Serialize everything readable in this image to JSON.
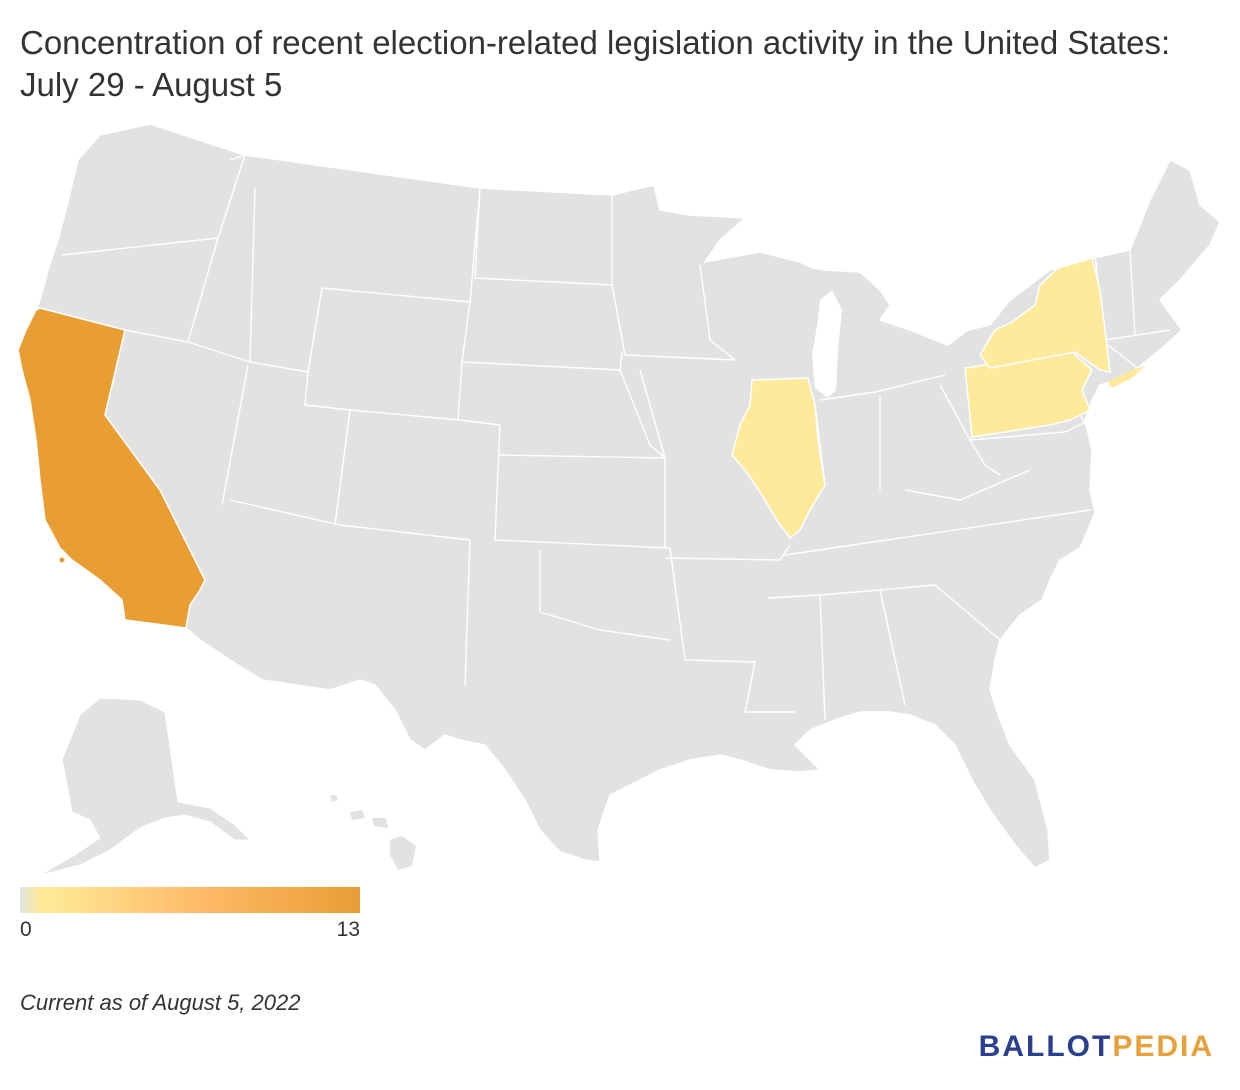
{
  "title": "Concentration of recent election-related legislation activity in the United States: July 29 - August 5",
  "legend": {
    "min_label": "0",
    "max_label": "13",
    "min_value": 0,
    "max_value": 13,
    "colors": [
      "#e2e2e2",
      "#ffeb99",
      "#ffb866",
      "#e89e35"
    ]
  },
  "colors": {
    "no_activity": "#e2e2e2",
    "low": "#ffe99a",
    "high": "#e89e33",
    "border": "#ffffff"
  },
  "regions": {
    "highlighted": [
      "California",
      "Illinois",
      "New York",
      "Pennsylvania"
    ]
  },
  "note": "Current as of August 5, 2022",
  "brand": {
    "part1": "BALLOT",
    "part2": "PEDIA"
  }
}
